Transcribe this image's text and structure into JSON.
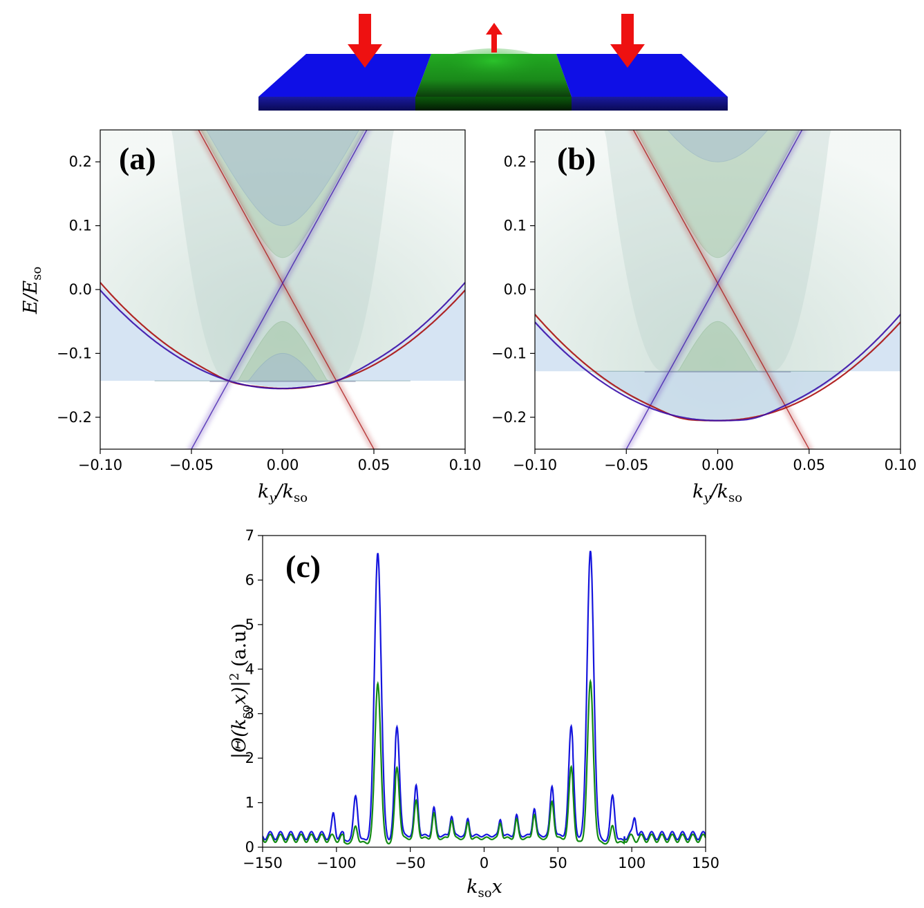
{
  "schematic": {
    "colors": {
      "magnet": "#1010e6",
      "magnet_dark": "#101080",
      "center": "#1ea11e",
      "center_dark": "#0a2a0a",
      "arrow": "#ee1111"
    },
    "spin_arrows": [
      "down",
      "up",
      "down"
    ]
  },
  "chart_data": [
    {
      "id": "a",
      "type": "band-structure",
      "panel_label": "(a)",
      "xlabel": "k_y/k_so",
      "ylabel": "E/E_so",
      "xlim": [
        -0.1,
        0.1
      ],
      "ylim": [
        -0.25,
        0.25
      ],
      "xticks": [
        -0.1,
        -0.05,
        0.0,
        0.05,
        0.1
      ],
      "xtick_labels": [
        "−0.10",
        "−0.05",
        "0.00",
        "0.05",
        "0.10"
      ],
      "yticks": [
        -0.2,
        -0.1,
        0.0,
        0.1,
        0.2
      ],
      "ytick_labels": [
        "−0.2",
        "−0.1",
        "0.0",
        "0.1",
        "0.2"
      ],
      "bulk": {
        "curvature": 42,
        "e0": -0.143,
        "outer_curvature": 16,
        "outer_e0": -0.153
      },
      "edge_states": {
        "crossing": [
          0.0,
          0.01
        ],
        "slope": 5.2,
        "min_e": -0.155,
        "min_k": 0.028
      },
      "gapped_bands": [
        {
          "color": "green",
          "tip_e": -0.05,
          "top_tip_e": 0.05
        },
        {
          "color": "blue",
          "tip_e": -0.1,
          "top_tip_e": 0.1
        }
      ],
      "colors": {
        "spin_up": "#aa1010",
        "spin_down": "#3a10aa"
      }
    },
    {
      "id": "b",
      "type": "band-structure",
      "panel_label": "(b)",
      "xlabel": "k_y/k_so",
      "ylabel": "",
      "xlim": [
        -0.1,
        0.1
      ],
      "ylim": [
        -0.25,
        0.25
      ],
      "xticks": [
        -0.1,
        -0.05,
        0.0,
        0.05,
        0.1
      ],
      "xtick_labels": [
        "−0.10",
        "−0.05",
        "0.00",
        "0.05",
        "0.10"
      ],
      "yticks": [
        -0.2,
        -0.1,
        0.0,
        0.1,
        0.2
      ],
      "ytick_labels": [
        "−0.2",
        "−0.1",
        "0.0",
        "0.1",
        "0.2"
      ],
      "bulk": {
        "curvature": 38,
        "e0": -0.128,
        "outer_curvature": 16,
        "outer_e0": -0.205
      },
      "edge_states": {
        "crossing": [
          0.0,
          0.01
        ],
        "slope": 5.2,
        "min_e": -0.205,
        "min_k": 0.02
      },
      "gapped_bands": [
        {
          "color": "green",
          "tip_e": -0.05,
          "top_tip_e": 0.05
        },
        {
          "color": "blue",
          "tip_e": -0.2,
          "top_tip_e": 0.2
        }
      ],
      "colors": {
        "spin_up": "#aa1010",
        "spin_down": "#3a10aa"
      }
    },
    {
      "id": "c",
      "type": "line",
      "panel_label": "(c)",
      "xlabel": "k_so x",
      "ylabel": "|Θ(k_so x)|² (a.u)",
      "xlim": [
        -150,
        150
      ],
      "ylim": [
        0,
        7
      ],
      "xticks": [
        -150,
        -100,
        -50,
        0,
        50,
        100,
        150
      ],
      "xtick_labels": [
        "−150",
        "−100",
        "−50",
        "0",
        "50",
        "100",
        "150"
      ],
      "yticks": [
        0,
        1,
        2,
        3,
        4,
        5,
        6,
        7
      ],
      "ytick_labels": [
        "0",
        "1",
        "2",
        "3",
        "4",
        "5",
        "6",
        "7"
      ],
      "series": [
        {
          "name": "blue",
          "color": "#1515dd",
          "peaks": [
            [
              -72,
              6.47,
              3.2
            ],
            [
              -59,
              2.45,
              2.4
            ],
            [
              -87,
              1.0,
              2.0
            ],
            [
              -46,
              1.12,
              1.8
            ],
            [
              -34,
              0.62,
              1.6
            ],
            [
              -22,
              0.45,
              1.5
            ],
            [
              -11,
              0.37,
              1.4
            ],
            [
              -102,
              0.45,
              1.5
            ]
          ],
          "baseline": 0.26
        },
        {
          "name": "green",
          "color": "#138a13",
          "peaks": [
            [
              -72,
              3.6,
              2.8
            ],
            [
              -59,
              1.6,
              2.2
            ],
            [
              -87,
              0.38,
              1.8
            ],
            [
              -46,
              0.84,
              1.8
            ],
            [
              -34,
              0.55,
              1.6
            ],
            [
              -22,
              0.42,
              1.5
            ],
            [
              -11,
              0.35,
              1.4
            ]
          ],
          "baseline": 0.2
        }
      ]
    }
  ]
}
